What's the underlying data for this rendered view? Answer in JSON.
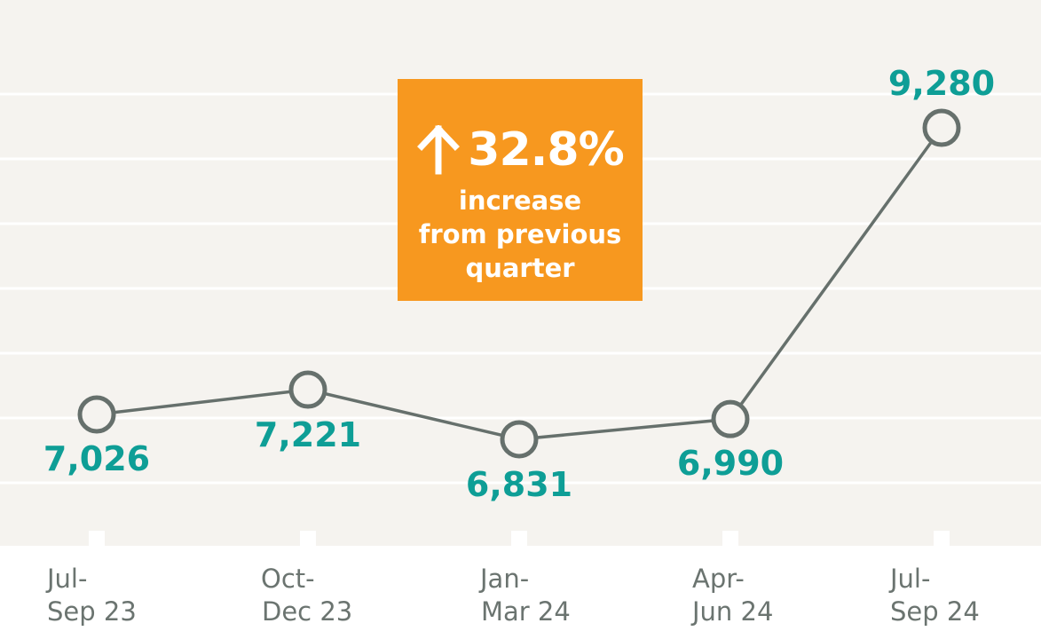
{
  "colors": {
    "plot_background": "#f5f3ef",
    "gridline": "#ffffff",
    "line": "#66706c",
    "value_label": "#0e9e96",
    "callout": "#f7981f",
    "axis_label": "#6b7470"
  },
  "chart_data": {
    "type": "line",
    "categories": [
      "Jul-Sep 23",
      "Oct-Dec 23",
      "Jan-Mar 24",
      "Apr-Jun 24",
      "Jul-Sep 24"
    ],
    "category_lines": [
      [
        "Jul-",
        "Sep 23"
      ],
      [
        "Oct-",
        "Dec 23"
      ],
      [
        "Jan-",
        "Mar 24"
      ],
      [
        "Apr-",
        "Jun 24"
      ],
      [
        "Jul-",
        "Sep 24"
      ]
    ],
    "values": [
      7026,
      7221,
      6831,
      6990,
      9280
    ],
    "value_labels": [
      "7,026",
      "7,221",
      "6,831",
      "6,990",
      "9,280"
    ],
    "ylim": [
      6500,
      9500
    ],
    "grid": true,
    "title": "",
    "xlabel": "",
    "ylabel": ""
  },
  "callout": {
    "icon": "arrow-up-icon",
    "percent": "32.8%",
    "lines": [
      "increase",
      "from previous",
      "quarter"
    ]
  }
}
